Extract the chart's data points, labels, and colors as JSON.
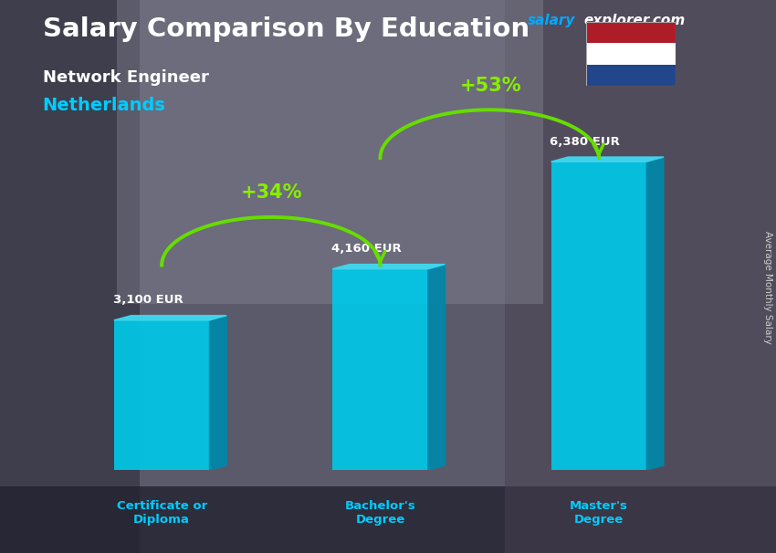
{
  "title_main": "Salary Comparison By Education",
  "subtitle1": "Network Engineer",
  "subtitle2": "Netherlands",
  "ylabel": "Average Monthly Salary",
  "website_salary": "salary",
  "website_rest": "explorer.com",
  "categories": [
    "Certificate or\nDiploma",
    "Bachelor's\nDegree",
    "Master's\nDegree"
  ],
  "values": [
    3100,
    4160,
    6380
  ],
  "value_labels": [
    "3,100 EUR",
    "4,160 EUR",
    "6,380 EUR"
  ],
  "pct_labels": [
    "+34%",
    "+53%"
  ],
  "bar_front_color": "#00c8e8",
  "bar_side_color": "#0088aa",
  "bar_top_color": "#40d8f0",
  "bg_color": "#5a5a6a",
  "title_color": "#ffffff",
  "subtitle1_color": "#ffffff",
  "subtitle2_color": "#00ccff",
  "cat_label_color": "#00ccff",
  "value_label_color": "#ffffff",
  "pct_label_color": "#88ee00",
  "arrow_color": "#66dd00",
  "flag_colors": [
    "#ae1c28",
    "#ffffff",
    "#21468b"
  ],
  "website_salary_color": "#00aaff",
  "website_rest_color": "#ffffff"
}
